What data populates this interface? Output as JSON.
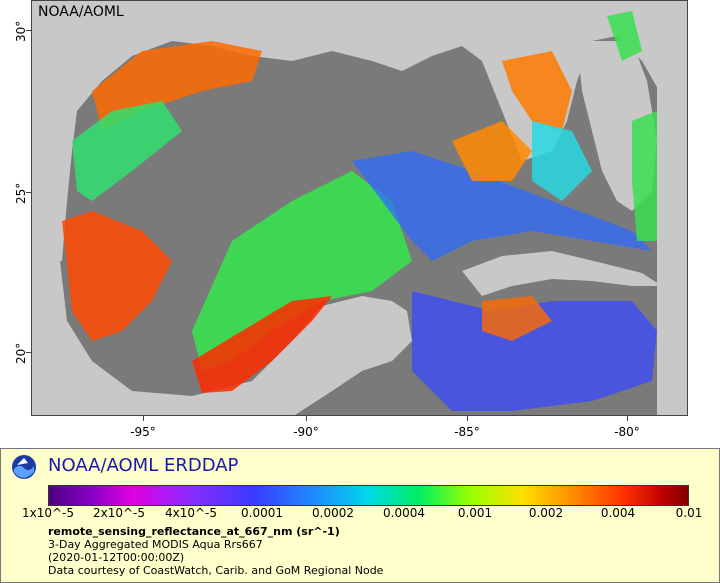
{
  "map": {
    "source_label": "NOAA/AOML",
    "lat_ticks": [
      "30°",
      "25°",
      "20°"
    ],
    "lon_ticks": [
      "-95°",
      "-90°",
      "-85°",
      "-80°"
    ]
  },
  "legend": {
    "brand": "NOAA/AOML ERDDAP",
    "colorbar_ticks": [
      "1x10^-5",
      "2x10^-5",
      "4x10^-5",
      "0.0001",
      "0.0002",
      "0.0004",
      "0.001",
      "0.002",
      "0.004",
      "0.01"
    ],
    "variable": "remote_sensing_reflectance_at_667_nm (sr^-1)",
    "dataset": "3-Day Aggregated MODIS Aqua Rrs667",
    "time": "(2020-01-12T00:00:00Z)",
    "credit": "Data courtesy of CoastWatch, Carib. and GoM Regional Node"
  },
  "colors": {
    "land": "#c8c8c8",
    "no_data": "#7a7a7a",
    "brand": "#1a1aa6",
    "legend_bg": "#ffffcc"
  }
}
